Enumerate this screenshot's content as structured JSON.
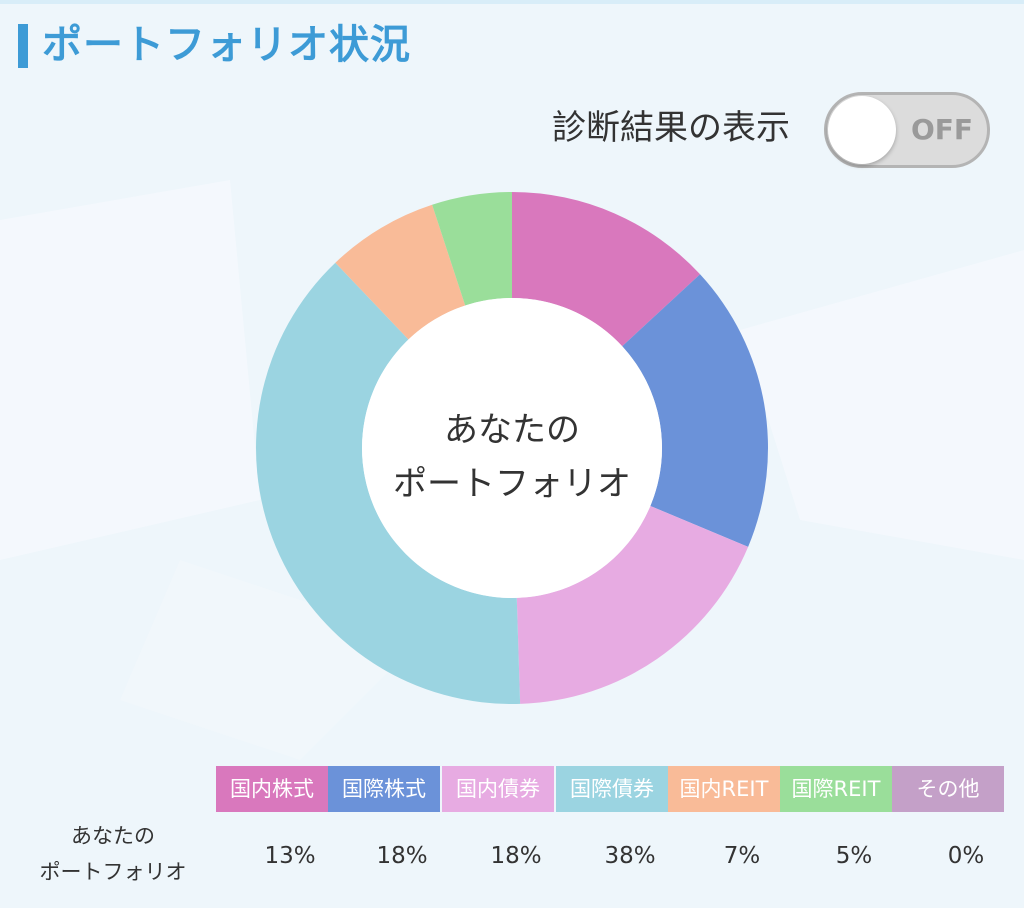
{
  "header": {
    "title": "ポートフォリオ状況"
  },
  "toggle": {
    "label": "診断結果の表示",
    "state": "OFF"
  },
  "chart_center": {
    "line1": "あなたの",
    "line2": "ポートフォリオ"
  },
  "chart_data": {
    "type": "pie",
    "categories": [
      "国内株式",
      "国際株式",
      "国内債券",
      "国際債券",
      "国内REIT",
      "国際REIT",
      "その他"
    ],
    "values": [
      13,
      18,
      18,
      38,
      7,
      5,
      0
    ],
    "colors": [
      "#d978bd",
      "#6b92d9",
      "#e7abe2",
      "#9bd4e1",
      "#f9bb98",
      "#9ade9a",
      "#c4a0c8"
    ]
  },
  "table": {
    "row_label_line1": "あなたの",
    "row_label_line2": "ポートフォリオ",
    "percentages": [
      "13%",
      "18%",
      "18%",
      "38%",
      "7%",
      "5%",
      "0%"
    ]
  }
}
